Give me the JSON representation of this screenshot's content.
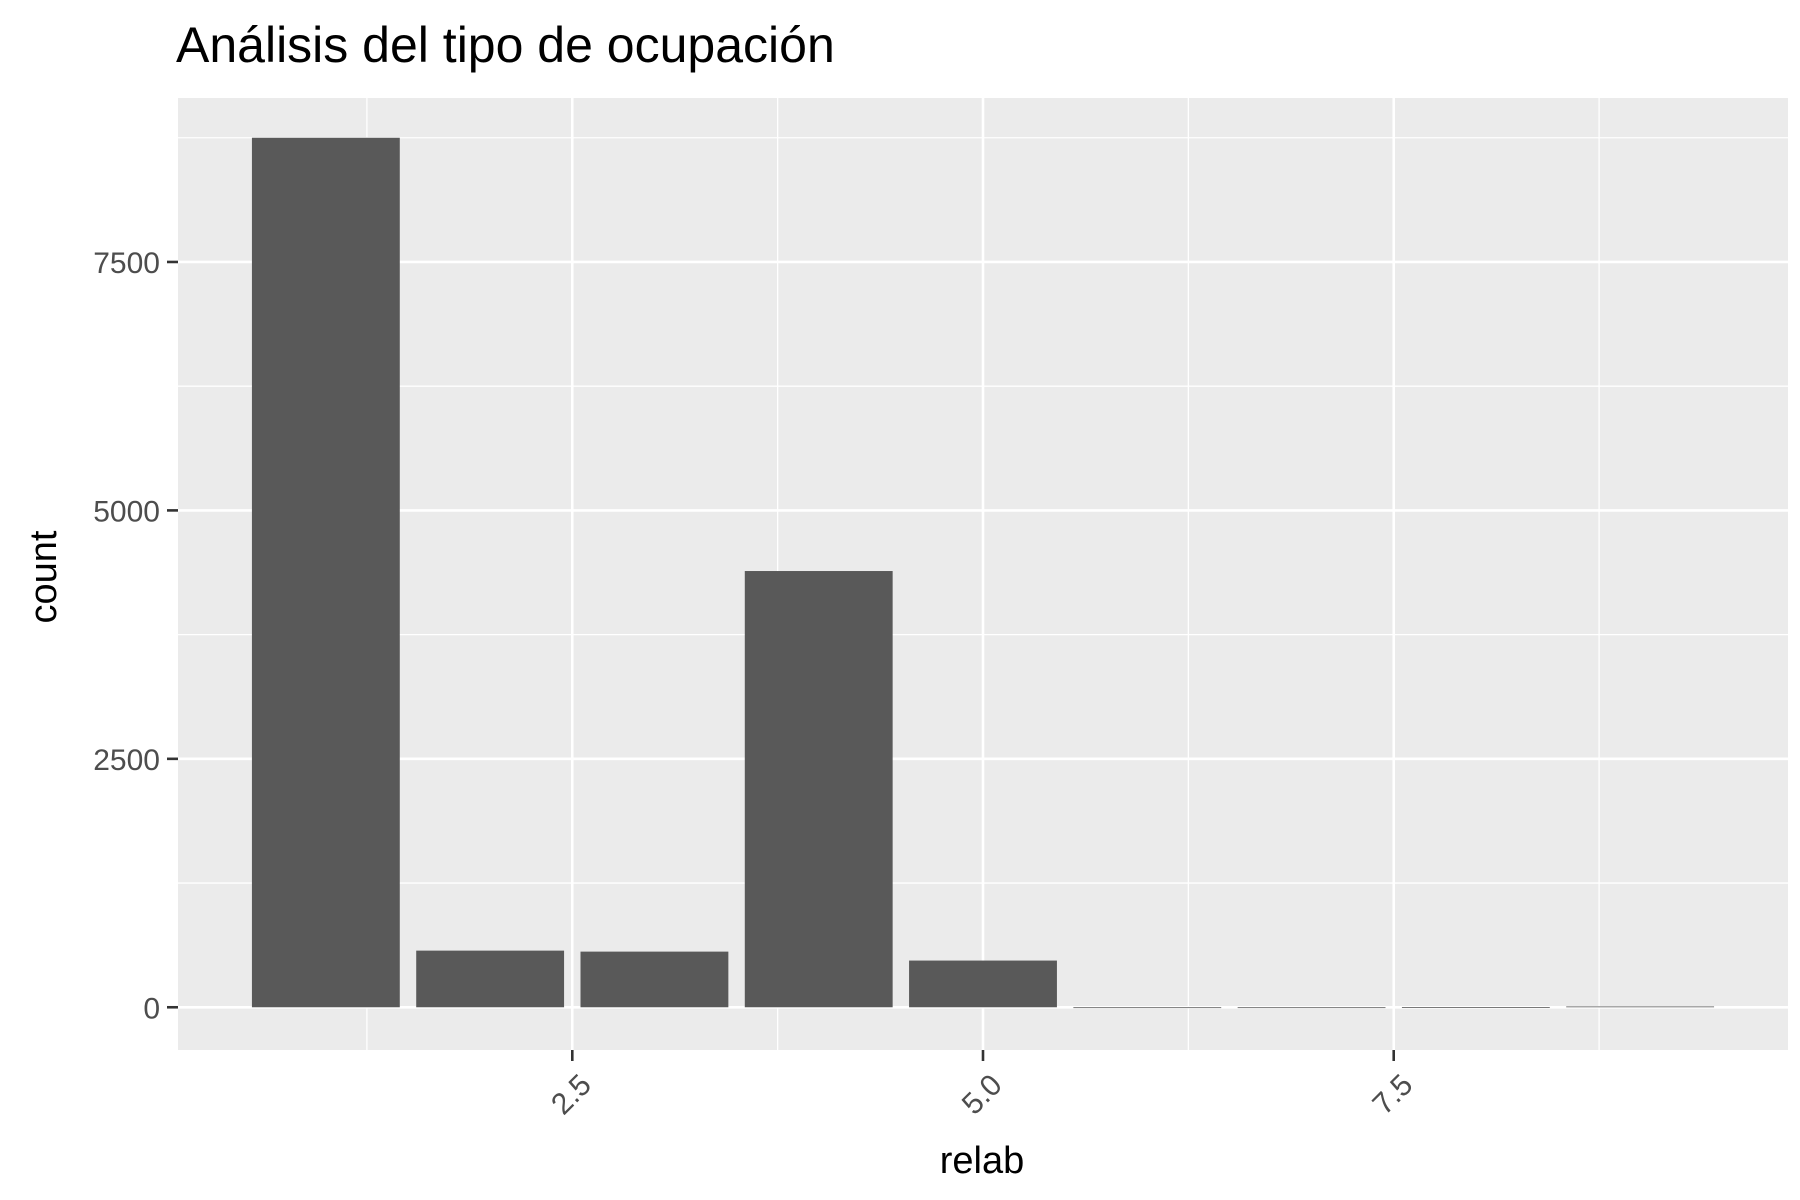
{
  "chart_data": {
    "type": "bar",
    "title": "Análisis del tipo de ocupación",
    "xlabel": "relab",
    "ylabel": "count",
    "x": [
      1,
      2,
      3,
      4,
      5,
      6,
      7,
      8,
      9
    ],
    "values": [
      8750,
      570,
      560,
      4390,
      470,
      0,
      0,
      2,
      8
    ],
    "xlim": [
      0.1,
      9.9
    ],
    "ylim": [
      -430,
      9150
    ],
    "x_ticks": [
      2.5,
      5.0,
      7.5
    ],
    "x_tick_labels": [
      "2.5",
      "5.0",
      "7.5"
    ],
    "x_minor_ticks": [
      1.25,
      3.75,
      6.25,
      8.75
    ],
    "y_ticks": [
      0,
      2500,
      5000,
      7500
    ],
    "y_tick_labels": [
      "0",
      "2500",
      "5000",
      "7500"
    ],
    "y_minor_ticks": [
      1250,
      3750,
      6250,
      8750
    ],
    "x_tick_rotation_deg": 45,
    "grid": true,
    "legend": "none",
    "colors": {
      "panel_background": "#ebebeb",
      "grid": "#ffffff",
      "bar_fill": "#595959",
      "tick_mark": "#333333",
      "tick_label": "#4d4d4d",
      "text": "#000000"
    }
  }
}
